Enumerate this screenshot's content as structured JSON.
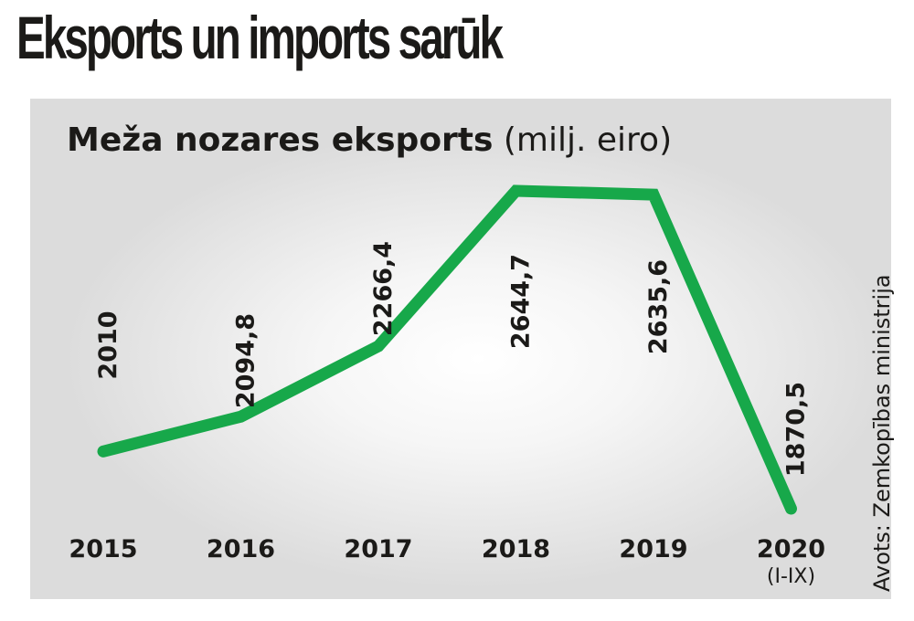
{
  "title": "Eksports un imports sarūk",
  "chart_data": {
    "type": "line",
    "title": "Meža nozares eksports",
    "unit": "(milj. eiro)",
    "categories": [
      "2015",
      "2016",
      "2017",
      "2018",
      "2019",
      "2020"
    ],
    "category_notes": [
      "",
      "",
      "",
      "",
      "",
      "(I-IX)"
    ],
    "values": [
      2010,
      2094.8,
      2266.4,
      2644.7,
      2635.6,
      1870.5
    ],
    "value_labels": [
      "2010",
      "2094,8",
      "2266,4",
      "2644,7",
      "2635,6",
      "1870,5"
    ],
    "line_color": "#17a84a",
    "grid": false,
    "legend": "none"
  },
  "source": "Avots: Zemkopības ministrija"
}
